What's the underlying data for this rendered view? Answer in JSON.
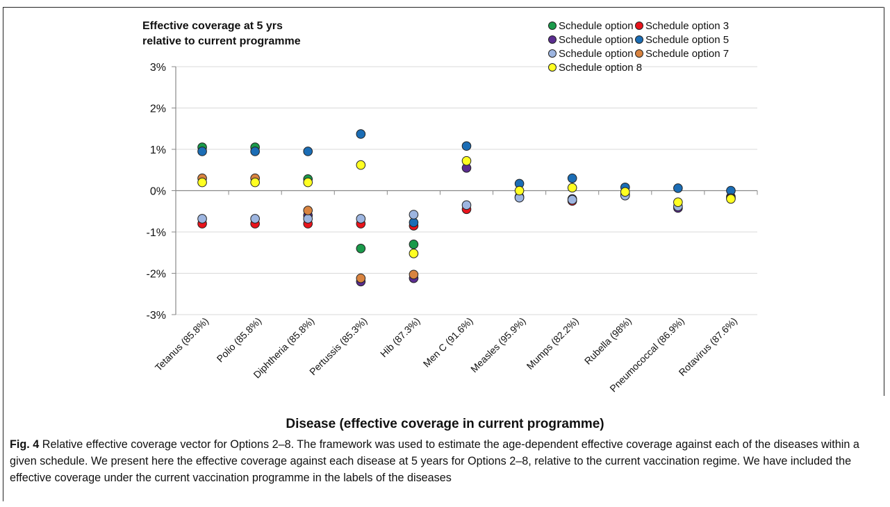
{
  "chart_data": {
    "type": "scatter",
    "title_lines": [
      "Effective coverage at 5 yrs",
      "relative to current programme"
    ],
    "xlabel": "Disease (effective coverage in current programme)",
    "ylabel": "",
    "ylim": [
      -3,
      3
    ],
    "yticks": [
      "-3%",
      "-2%",
      "-1%",
      "0%",
      "1%",
      "2%",
      "3%"
    ],
    "grid": true,
    "legend_position": "top-right",
    "categories": [
      "Tetanus (85.8%)",
      "Polio (85.8%)",
      "Diphtheria (85.8%)",
      "Pertussis (85.3%)",
      "Hib  (87.3%)",
      "Men C (91.6%)",
      "Measles (95.9%)",
      "Mumps (82.2%)",
      "Rubella (98%)",
      "Pneumococcal (86.9%)",
      "Rotavirus (87.6%)"
    ],
    "series": [
      {
        "name": "Schedule option 2",
        "color": "#1a9a4a",
        "values": [
          1.05,
          1.05,
          0.28,
          -1.4,
          -1.3,
          null,
          null,
          null,
          null,
          null,
          null
        ]
      },
      {
        "name": "Schedule option 3",
        "color": "#e8141c",
        "values": [
          -0.8,
          -0.8,
          -0.8,
          -0.8,
          -0.85,
          -0.45,
          -0.15,
          -0.25,
          -0.1,
          null,
          -0.15
        ]
      },
      {
        "name": "Schedule option 4",
        "color": "#5b2d90",
        "values": [
          null,
          null,
          -0.6,
          -2.2,
          -2.12,
          0.55,
          -0.17,
          -0.2,
          -0.1,
          -0.42,
          null
        ]
      },
      {
        "name": "Schedule option 5",
        "color": "#1b6db5",
        "values": [
          0.95,
          0.95,
          0.95,
          1.37,
          -0.77,
          1.08,
          0.17,
          0.3,
          0.08,
          0.06,
          0.0
        ]
      },
      {
        "name": "Schedule option 6",
        "color": "#9db5e0",
        "values": [
          -0.68,
          -0.68,
          -0.68,
          -0.68,
          -0.58,
          -0.35,
          -0.17,
          -0.22,
          -0.12,
          -0.38,
          -0.18
        ]
      },
      {
        "name": "Schedule option 7",
        "color": "#d98440",
        "values": [
          0.3,
          0.3,
          -0.48,
          -2.12,
          -2.03,
          null,
          null,
          null,
          null,
          null,
          null
        ]
      },
      {
        "name": "Schedule option 8",
        "color": "#ffff22",
        "values": [
          0.2,
          0.2,
          0.2,
          0.62,
          -1.52,
          0.72,
          0.0,
          0.07,
          -0.03,
          -0.28,
          -0.2
        ]
      }
    ]
  },
  "caption": {
    "label": "Fig. 4",
    "text": " Relative effective coverage vector for Options 2–8. The framework was used to estimate the age-dependent effective coverage against each of the diseases within a given schedule. We present here the effective coverage against each disease at 5 years for Options 2–8, relative to the current vaccination regime. We have included the effective coverage under the current vaccination programme in the labels of the diseases"
  }
}
